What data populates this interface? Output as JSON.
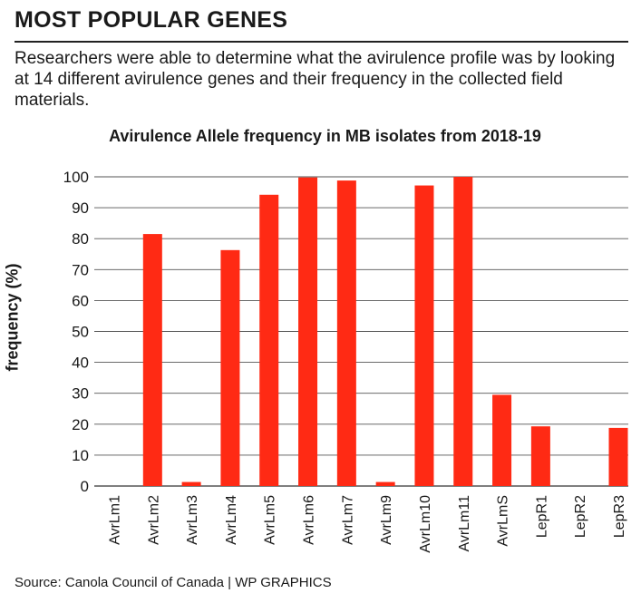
{
  "header": {
    "title": "MOST POPULAR GENES",
    "intro": "Researchers were able to determine what the avirulence profile was by looking at 14 different avirulence genes and their frequency in the collected field materials."
  },
  "footer": {
    "source": "Source: Canola Council of Canada |  WP GRAPHICS"
  },
  "chart_data": {
    "type": "bar",
    "title": "Avirulence Allele frequency in MB isolates from 2018-19",
    "xlabel": "",
    "ylabel": "frequency (%)",
    "ylim": [
      0,
      100
    ],
    "yticks": [
      0,
      10,
      20,
      30,
      40,
      50,
      60,
      70,
      80,
      90,
      100
    ],
    "grid": true,
    "bar_color": "#ff2a14",
    "categories": [
      "AvrLm1",
      "AvrLm2",
      "AvrLm3",
      "AvrLm4",
      "AvrLm5",
      "AvrLm6",
      "AvrLm7",
      "AvrLm9",
      "AvrLm10",
      "AvrLm11",
      "AvrLmS",
      "LepR1",
      "LepR2",
      "LepR3"
    ],
    "values": [
      0,
      81.5,
      1.3,
      76.3,
      94.2,
      99.8,
      98.8,
      1.3,
      97.2,
      100,
      29.5,
      19.3,
      0,
      18.8
    ]
  }
}
